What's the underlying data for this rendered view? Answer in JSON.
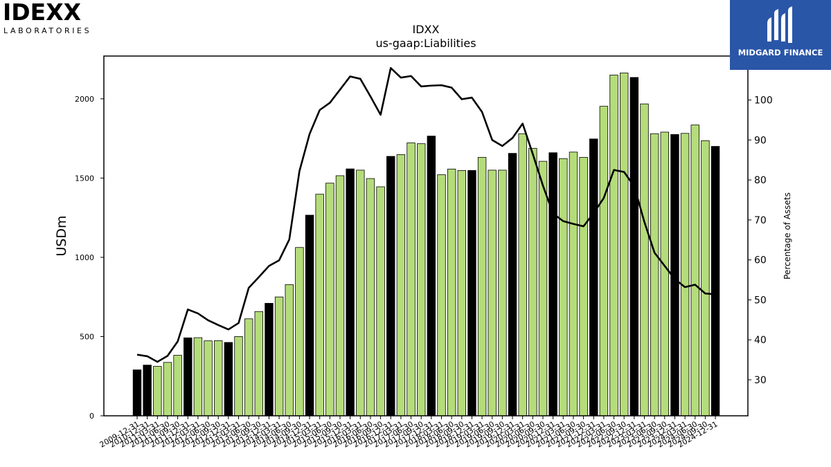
{
  "logos": {
    "left_wordmark": "IDEXX",
    "left_subtitle": "LABORATORIES",
    "right_brand": "MIDGARD FINANCE"
  },
  "chart_data": {
    "type": "bar",
    "title": "IDXX",
    "subtitle": "us-gaap:Liabilities",
    "ylabel": "USDm",
    "y2label": "Percentage of Assets",
    "ylim": [
      0,
      2270
    ],
    "y2lim": [
      21,
      111
    ],
    "yticks": [
      0,
      500,
      1000,
      1500,
      2000
    ],
    "y2ticks": [
      30,
      40,
      50,
      60,
      70,
      80,
      90,
      100
    ],
    "colors": {
      "annual_bar": "#000000",
      "quarter_bar": "#b5dc7a",
      "line": "#000000"
    },
    "categories": [
      "2009-12-31",
      "2010-12-31",
      "2011-03-31",
      "2011-06-30",
      "2011-09-30",
      "2011-12-31",
      "2012-03-31",
      "2012-06-30",
      "2012-09-30",
      "2012-12-31",
      "2013-03-31",
      "2013-06-30",
      "2013-09-30",
      "2013-12-31",
      "2014-03-31",
      "2014-06-30",
      "2014-09-30",
      "2014-12-31",
      "2015-03-31",
      "2015-06-30",
      "2015-09-30",
      "2015-12-31",
      "2016-03-31",
      "2016-06-30",
      "2016-09-30",
      "2016-12-31",
      "2017-03-31",
      "2017-06-30",
      "2017-09-30",
      "2017-12-31",
      "2018-03-31",
      "2018-06-30",
      "2018-09-30",
      "2018-12-31",
      "2019-03-31",
      "2019-06-30",
      "2019-09-30",
      "2019-12-31",
      "2020-03-31",
      "2020-06-30",
      "2020-09-30",
      "2020-12-31",
      "2021-03-31",
      "2021-06-30",
      "2021-09-30",
      "2021-12-31",
      "2022-03-31",
      "2022-06-30",
      "2022-09-30",
      "2022-12-31",
      "2023-03-31",
      "2023-06-30",
      "2023-09-30",
      "2023-12-31",
      "2024-03-31",
      "2024-06-30",
      "2024-09-30",
      "2024-12-31"
    ],
    "annual": [
      true,
      true,
      false,
      false,
      false,
      true,
      false,
      false,
      false,
      true,
      false,
      false,
      false,
      true,
      false,
      false,
      false,
      true,
      false,
      false,
      false,
      true,
      false,
      false,
      false,
      true,
      false,
      false,
      false,
      true,
      false,
      false,
      false,
      true,
      false,
      false,
      false,
      true,
      false,
      false,
      false,
      true,
      false,
      false,
      false,
      true,
      false,
      false,
      false,
      true,
      false,
      false,
      false,
      true,
      false,
      false,
      false,
      true
    ],
    "series": [
      {
        "name": "Liabilities",
        "values": [
          290,
          320,
          312,
          337,
          382,
          492,
          493,
          473,
          474,
          463,
          500,
          612,
          658,
          710,
          750,
          828,
          1062,
          1266,
          1398,
          1468,
          1515,
          1558,
          1550,
          1497,
          1445,
          1637,
          1648,
          1722,
          1717,
          1765,
          1521,
          1557,
          1548,
          1548,
          1631,
          1550,
          1550,
          1656,
          1780,
          1688,
          1606,
          1660,
          1623,
          1664,
          1631,
          1747,
          1953,
          2150,
          2163,
          2135,
          1968,
          1780,
          1790,
          1775,
          1782,
          1835,
          1736,
          1700
        ]
      },
      {
        "name": "Percentage of Assets",
        "values": [
          36.3,
          35.9,
          34.5,
          36.0,
          39.6,
          47.6,
          46.6,
          44.9,
          43.7,
          42.6,
          44.2,
          53.0,
          55.7,
          58.5,
          59.9,
          65.1,
          82.2,
          91.5,
          97.5,
          99.3,
          102.6,
          105.9,
          105.3,
          100.9,
          96.3,
          108.0,
          105.6,
          106.0,
          103.4,
          103.6,
          103.7,
          103.1,
          100.2,
          100.6,
          97.0,
          90.0,
          88.5,
          90.5,
          94.1,
          86.5,
          78.6,
          71.6,
          69.7,
          69.0,
          68.4,
          71.7,
          75.5,
          82.5,
          82.0,
          78.4,
          69.5,
          61.8,
          58.5,
          55.2,
          53.2,
          53.8,
          51.6,
          51.4
        ]
      }
    ]
  }
}
